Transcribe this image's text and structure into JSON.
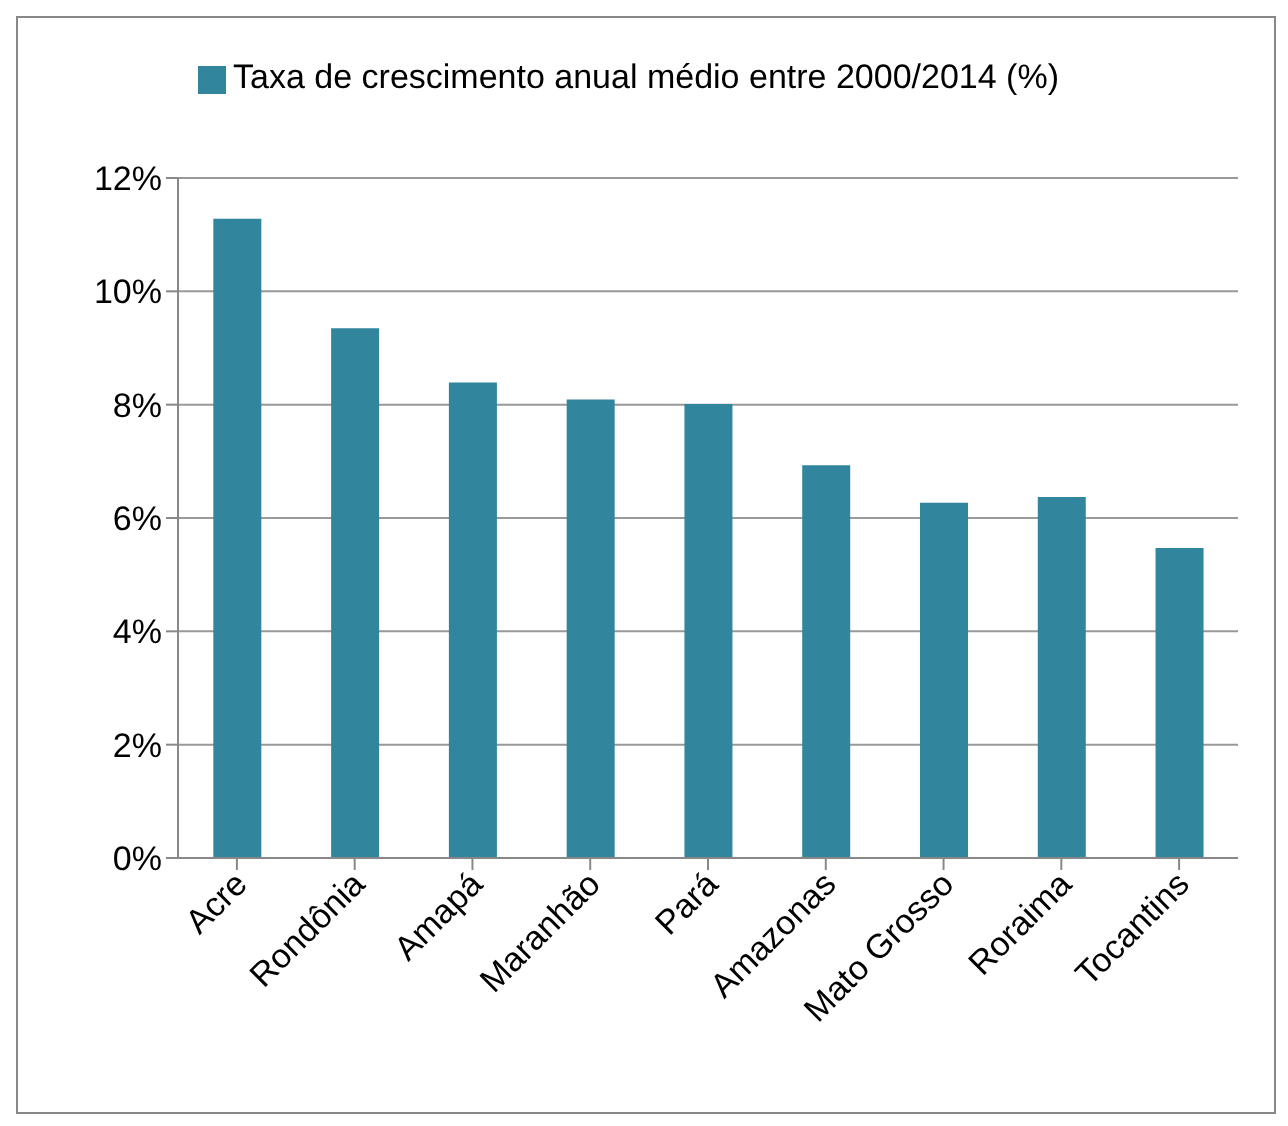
{
  "chart_data": {
    "type": "bar",
    "categories": [
      "Acre",
      "Rondônia",
      "Amapá",
      "Maranhão",
      "Pará",
      "Amazonas",
      "Mato Grosso",
      "Roraima",
      "Tocantins"
    ],
    "series": [
      {
        "name": "Taxa de crescimento anual médio entre 2000/2014 (%)",
        "color": "#31859c",
        "values": [
          11.28,
          9.35,
          8.39,
          8.09,
          8.01,
          6.93,
          6.27,
          6.37,
          5.47
        ]
      }
    ],
    "ylim": [
      0,
      12
    ],
    "yticks": [
      {
        "value": 0,
        "label": "0%"
      },
      {
        "value": 2,
        "label": "2%"
      },
      {
        "value": 4,
        "label": "4%"
      },
      {
        "value": 6,
        "label": "6%"
      },
      {
        "value": 8,
        "label": "8%"
      },
      {
        "value": 10,
        "label": "10%"
      },
      {
        "value": 12,
        "label": "12%"
      }
    ],
    "grid": "y",
    "legend": "top"
  }
}
